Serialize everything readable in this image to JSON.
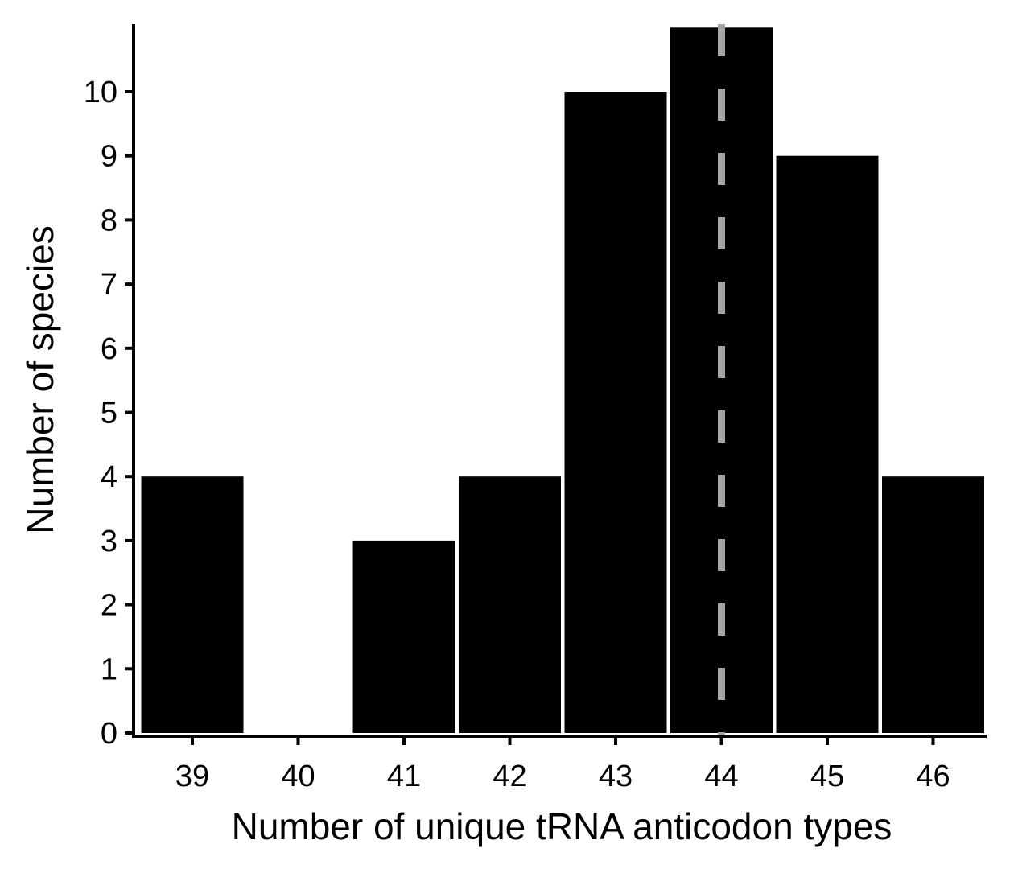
{
  "chart_data": {
    "type": "bar",
    "title": "",
    "xlabel": "Number of unique tRNA anticodon types",
    "ylabel": "Number of species",
    "categories": [
      "39",
      "40",
      "41",
      "42",
      "43",
      "44",
      "45",
      "46"
    ],
    "values": [
      4,
      0,
      3,
      4,
      10,
      11,
      9,
      4
    ],
    "ylim": [
      0,
      11
    ],
    "yticks": [
      0,
      1,
      2,
      3,
      4,
      5,
      6,
      7,
      8,
      9,
      10
    ],
    "reference_line": {
      "x": "44",
      "style": "dashed",
      "color": "#a6a6a6"
    },
    "bar_color": "#000000",
    "grid": false,
    "legend": "none"
  }
}
